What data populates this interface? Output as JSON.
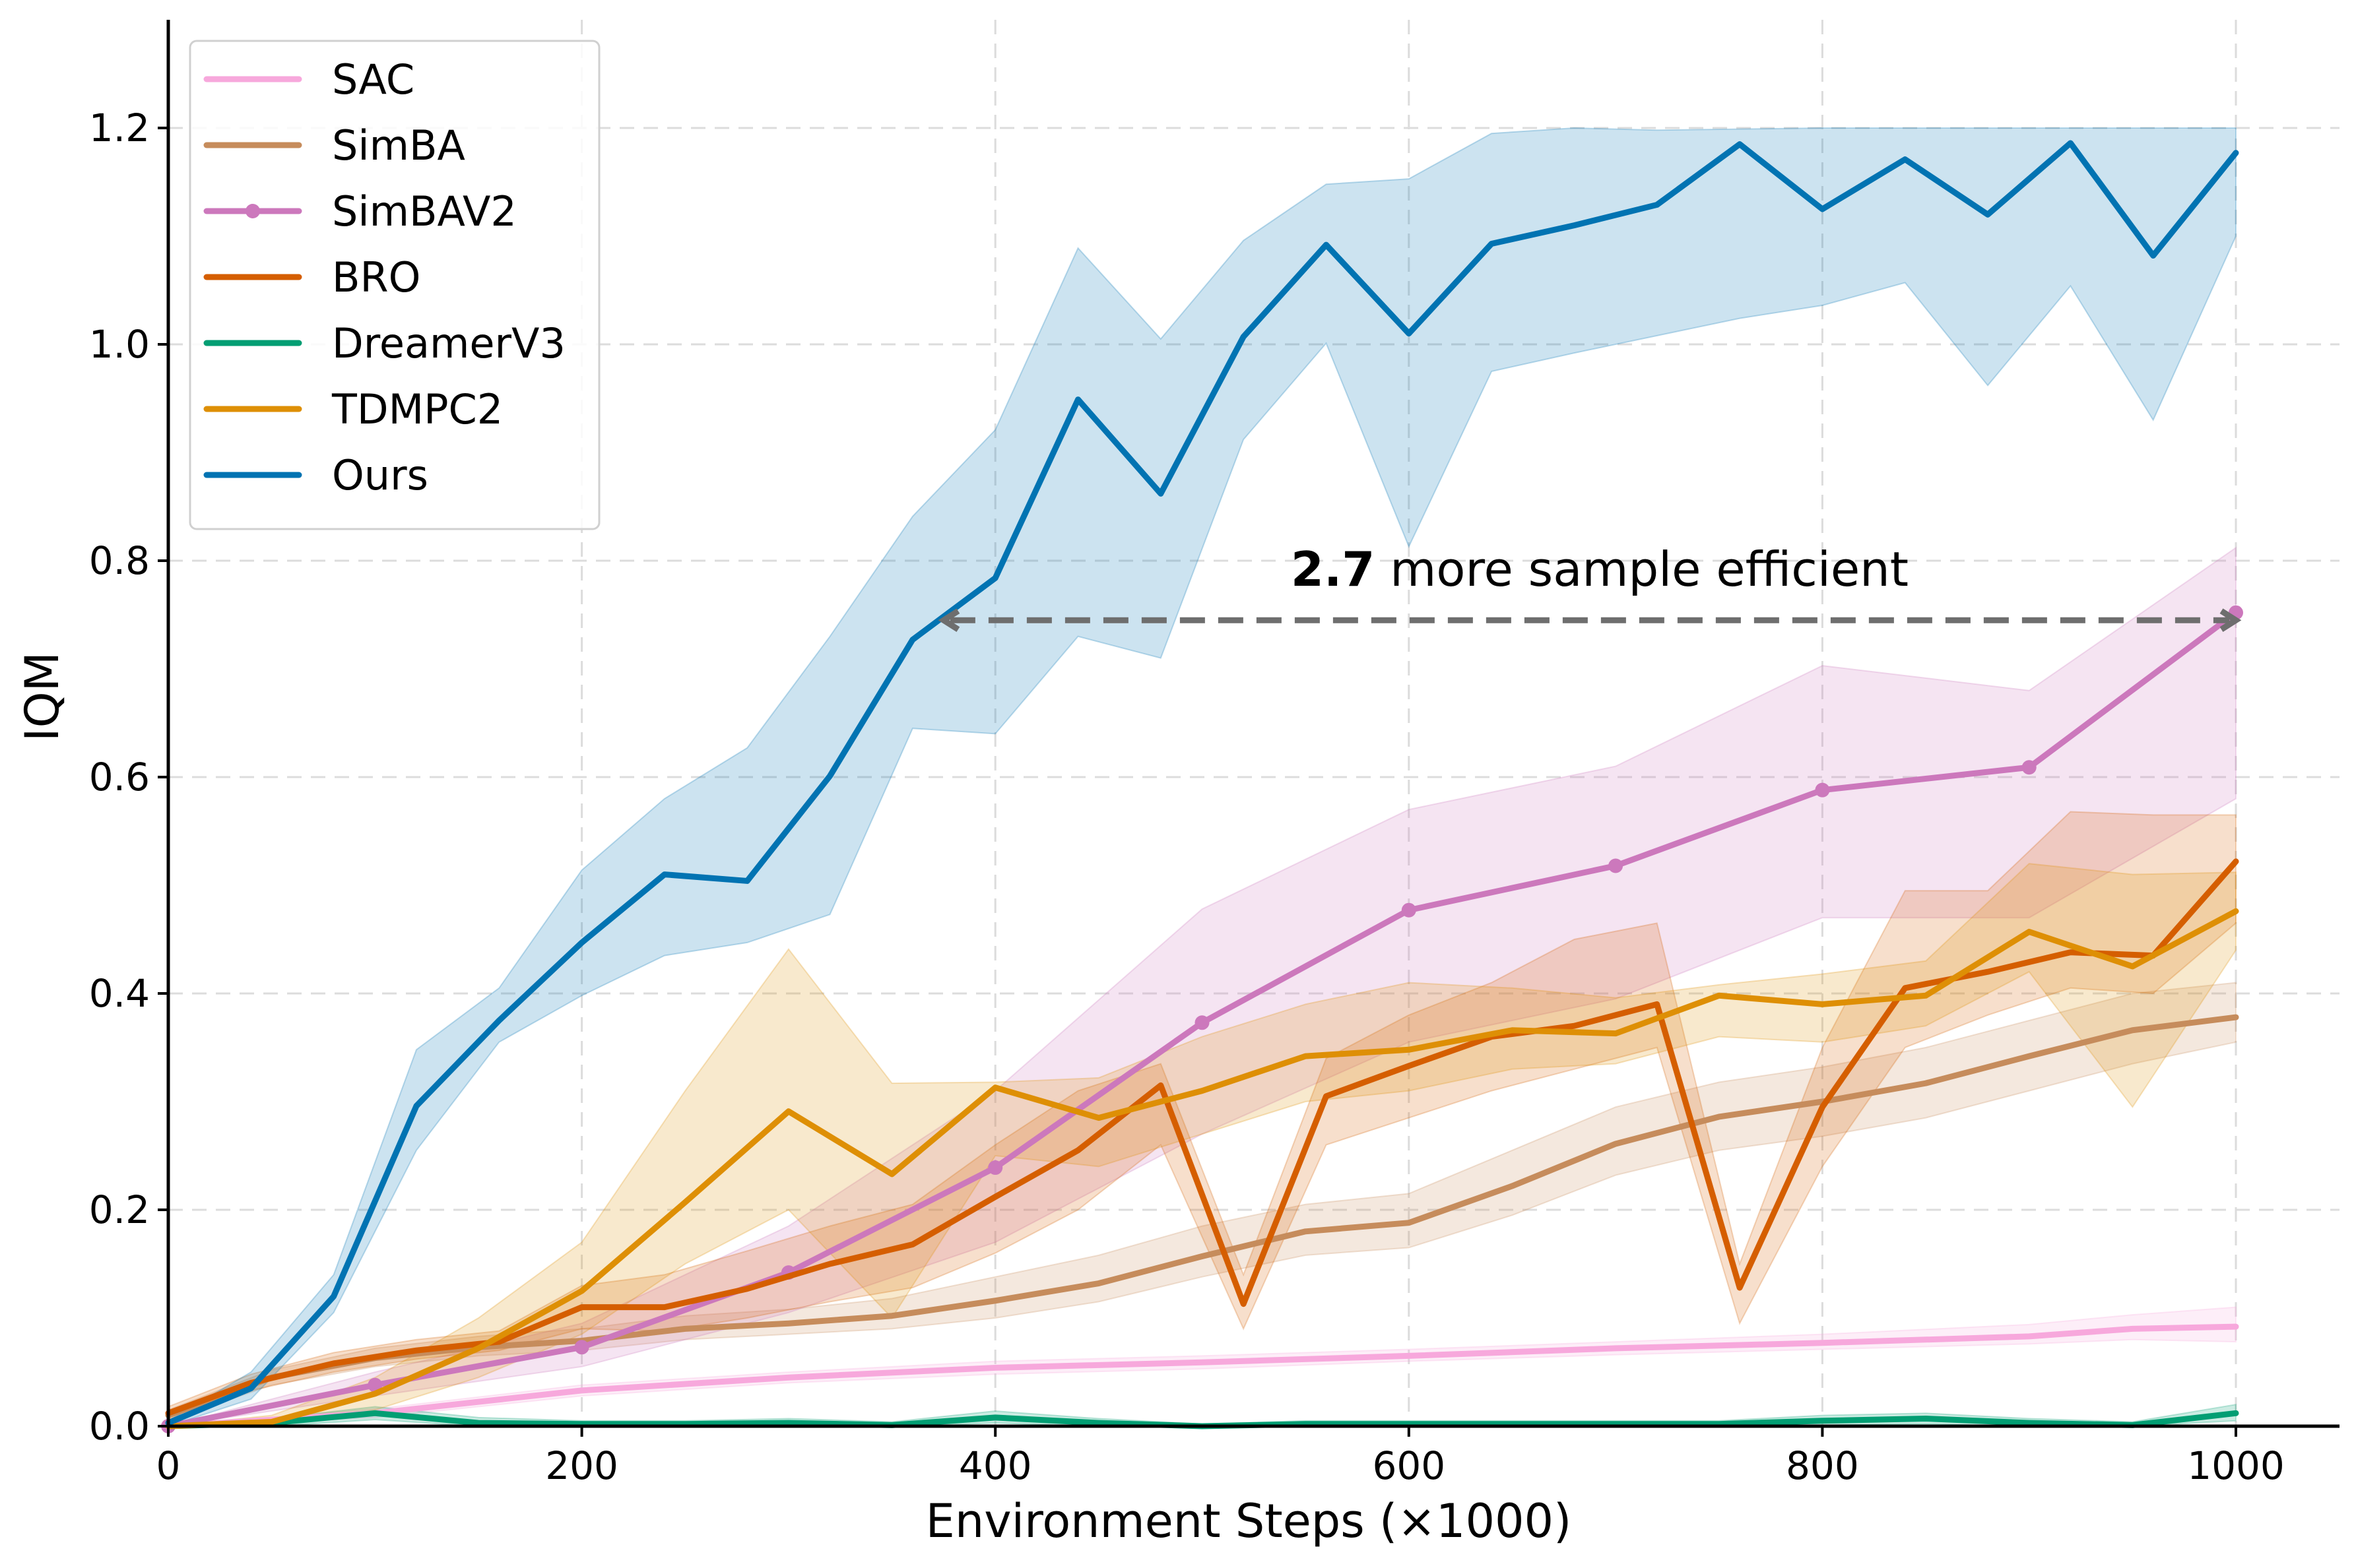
{
  "chart_data": {
    "type": "line",
    "title": "",
    "xlabel": "Environment Steps (×1000)",
    "ylabel": "IQM",
    "xlim": [
      0,
      1050
    ],
    "ylim": [
      0,
      1.3
    ],
    "xticks": [
      0,
      200,
      400,
      600,
      800,
      1000
    ],
    "yticks": [
      0.0,
      0.2,
      0.4,
      0.6,
      0.8,
      1.0,
      1.2
    ],
    "xtick_labels": [
      "0",
      "200",
      "400",
      "600",
      "800",
      "1000"
    ],
    "ytick_labels": [
      "0.0",
      "0.2",
      "0.4",
      "0.6",
      "0.8",
      "1.0",
      "1.2"
    ],
    "grid": true,
    "legend_position": "top-left",
    "series": [
      {
        "name": "SAC",
        "color": "#f7a8dc",
        "markers": false,
        "x": [
          0,
          100,
          200,
          300,
          400,
          500,
          600,
          700,
          800,
          900,
          950,
          1000
        ],
        "y": [
          0.0,
          0.012,
          0.033,
          0.045,
          0.054,
          0.059,
          0.065,
          0.072,
          0.077,
          0.083,
          0.09,
          0.092
        ],
        "lower": [
          0.0,
          0.008,
          0.028,
          0.04,
          0.048,
          0.053,
          0.06,
          0.066,
          0.071,
          0.076,
          0.08,
          0.078
        ],
        "upper": [
          0.0,
          0.016,
          0.038,
          0.05,
          0.06,
          0.065,
          0.071,
          0.078,
          0.085,
          0.094,
          0.103,
          0.11
        ]
      },
      {
        "name": "SimBA",
        "color": "#c68c5c",
        "markers": false,
        "x": [
          0,
          50,
          100,
          150,
          200,
          250,
          300,
          350,
          400,
          450,
          500,
          550,
          600,
          650,
          700,
          750,
          800,
          850,
          900,
          950,
          1000
        ],
        "y": [
          0.01,
          0.045,
          0.063,
          0.073,
          0.079,
          0.09,
          0.095,
          0.102,
          0.116,
          0.132,
          0.157,
          0.18,
          0.188,
          0.222,
          0.261,
          0.286,
          0.3,
          0.317,
          0.342,
          0.366,
          0.378
        ],
        "lower": [
          0.005,
          0.038,
          0.055,
          0.065,
          0.07,
          0.08,
          0.085,
          0.09,
          0.1,
          0.115,
          0.138,
          0.158,
          0.165,
          0.195,
          0.232,
          0.255,
          0.268,
          0.285,
          0.31,
          0.335,
          0.355
        ],
        "upper": [
          0.015,
          0.052,
          0.072,
          0.083,
          0.09,
          0.102,
          0.108,
          0.118,
          0.138,
          0.158,
          0.185,
          0.205,
          0.215,
          0.255,
          0.295,
          0.318,
          0.332,
          0.35,
          0.375,
          0.4,
          0.41
        ]
      },
      {
        "name": "SimBAV2",
        "color": "#cc78bc",
        "markers": true,
        "x": [
          0,
          100,
          200,
          300,
          400,
          500,
          600,
          700,
          800,
          900,
          1000
        ],
        "y": [
          0.0,
          0.038,
          0.073,
          0.142,
          0.239,
          0.373,
          0.477,
          0.518,
          0.588,
          0.609,
          0.752
        ],
        "lower": [
          0.0,
          0.028,
          0.055,
          0.105,
          0.17,
          0.27,
          0.355,
          0.395,
          0.47,
          0.47,
          0.58
        ],
        "upper": [
          0.0,
          0.05,
          0.095,
          0.185,
          0.31,
          0.478,
          0.57,
          0.61,
          0.703,
          0.68,
          0.812
        ]
      },
      {
        "name": "BRO",
        "color": "#d55e00",
        "markers": false,
        "x": [
          0,
          40,
          80,
          120,
          160,
          200,
          240,
          280,
          320,
          360,
          400,
          440,
          480,
          520,
          560,
          600,
          640,
          680,
          720,
          760,
          800,
          840,
          880,
          920,
          960,
          1000
        ],
        "y": [
          0.012,
          0.04,
          0.058,
          0.07,
          0.078,
          0.11,
          0.11,
          0.127,
          0.15,
          0.168,
          0.212,
          0.255,
          0.315,
          0.113,
          0.305,
          0.333,
          0.36,
          0.37,
          0.39,
          0.128,
          0.295,
          0.405,
          0.42,
          0.438,
          0.435,
          0.522
        ],
        "lower": [
          0.006,
          0.033,
          0.05,
          0.062,
          0.07,
          0.09,
          0.088,
          0.1,
          0.115,
          0.128,
          0.16,
          0.2,
          0.26,
          0.09,
          0.26,
          0.285,
          0.31,
          0.33,
          0.35,
          0.095,
          0.24,
          0.35,
          0.38,
          0.405,
          0.4,
          0.465
        ],
        "upper": [
          0.018,
          0.048,
          0.068,
          0.08,
          0.088,
          0.13,
          0.14,
          0.162,
          0.185,
          0.205,
          0.26,
          0.31,
          0.335,
          0.14,
          0.34,
          0.38,
          0.41,
          0.45,
          0.465,
          0.15,
          0.35,
          0.495,
          0.495,
          0.568,
          0.565,
          0.565
        ]
      },
      {
        "name": "DreamerV3",
        "color": "#029e73",
        "markers": false,
        "x": [
          0,
          50,
          100,
          150,
          200,
          250,
          300,
          350,
          400,
          450,
          500,
          550,
          600,
          650,
          700,
          750,
          800,
          850,
          900,
          950,
          1000
        ],
        "y": [
          0.0,
          0.003,
          0.012,
          0.003,
          0.002,
          0.002,
          0.003,
          0.001,
          0.008,
          0.003,
          0.0,
          0.002,
          0.002,
          0.002,
          0.002,
          0.002,
          0.005,
          0.007,
          0.003,
          0.001,
          0.012
        ],
        "lower": [
          0.0,
          0.0,
          0.006,
          0.0,
          0.0,
          0.0,
          0.0,
          0.0,
          0.003,
          0.0,
          0.0,
          0.0,
          0.0,
          0.0,
          0.0,
          0.0,
          0.001,
          0.002,
          0.0,
          0.0,
          0.005
        ],
        "upper": [
          0.0,
          0.007,
          0.018,
          0.008,
          0.005,
          0.005,
          0.007,
          0.004,
          0.014,
          0.007,
          0.002,
          0.005,
          0.005,
          0.005,
          0.005,
          0.005,
          0.01,
          0.012,
          0.007,
          0.004,
          0.02
        ]
      },
      {
        "name": "TDMPC2",
        "color": "#de8f05",
        "markers": false,
        "x": [
          0,
          50,
          100,
          150,
          200,
          250,
          300,
          350,
          400,
          450,
          500,
          550,
          600,
          650,
          700,
          750,
          800,
          850,
          900,
          950,
          1000
        ],
        "y": [
          0.0,
          0.004,
          0.03,
          0.072,
          0.125,
          0.207,
          0.291,
          0.233,
          0.313,
          0.285,
          0.31,
          0.342,
          0.348,
          0.366,
          0.363,
          0.398,
          0.39,
          0.398,
          0.457,
          0.425,
          0.476
        ],
        "lower": [
          0.0,
          0.0,
          0.015,
          0.045,
          0.085,
          0.15,
          0.2,
          0.1,
          0.25,
          0.24,
          0.27,
          0.3,
          0.31,
          0.33,
          0.335,
          0.36,
          0.355,
          0.37,
          0.42,
          0.295,
          0.44
        ],
        "upper": [
          0.0,
          0.01,
          0.045,
          0.1,
          0.17,
          0.31,
          0.441,
          0.317,
          0.318,
          0.322,
          0.36,
          0.39,
          0.41,
          0.405,
          0.396,
          0.408,
          0.418,
          0.43,
          0.52,
          0.51,
          0.512
        ]
      },
      {
        "name": "Ours",
        "color": "#0173b2",
        "markers": false,
        "x": [
          0,
          40,
          80,
          120,
          160,
          200,
          240,
          280,
          320,
          360,
          400,
          440,
          480,
          520,
          560,
          600,
          640,
          680,
          720,
          760,
          800,
          840,
          880,
          920,
          960,
          1000
        ],
        "y": [
          0.003,
          0.035,
          0.12,
          0.296,
          0.375,
          0.447,
          0.51,
          0.504,
          0.601,
          0.727,
          0.784,
          0.949,
          0.862,
          1.007,
          1.092,
          1.01,
          1.093,
          1.11,
          1.129,
          1.185,
          1.125,
          1.171,
          1.12,
          1.186,
          1.082,
          1.177
        ],
        "lower": [
          0.0,
          0.025,
          0.105,
          0.255,
          0.355,
          0.398,
          0.435,
          0.447,
          0.473,
          0.645,
          0.64,
          0.73,
          0.71,
          0.912,
          1.001,
          0.813,
          0.975,
          0.992,
          1.008,
          1.024,
          1.036,
          1.057,
          0.962,
          1.054,
          0.93,
          1.1
        ],
        "upper": [
          0.005,
          0.05,
          0.14,
          0.348,
          0.405,
          0.514,
          0.58,
          0.627,
          0.73,
          0.841,
          0.921,
          1.089,
          1.005,
          1.096,
          1.148,
          1.153,
          1.195,
          1.2,
          1.198,
          1.199,
          1.2,
          1.2,
          1.2,
          1.2,
          1.2,
          1.2
        ]
      }
    ],
    "annotation": {
      "bold_text": "2.7",
      "text": " more sample efficient",
      "arrow_from": [
        375,
        0.745
      ],
      "arrow_to": [
        1000,
        0.745
      ],
      "color": "#6e6e6e"
    }
  }
}
